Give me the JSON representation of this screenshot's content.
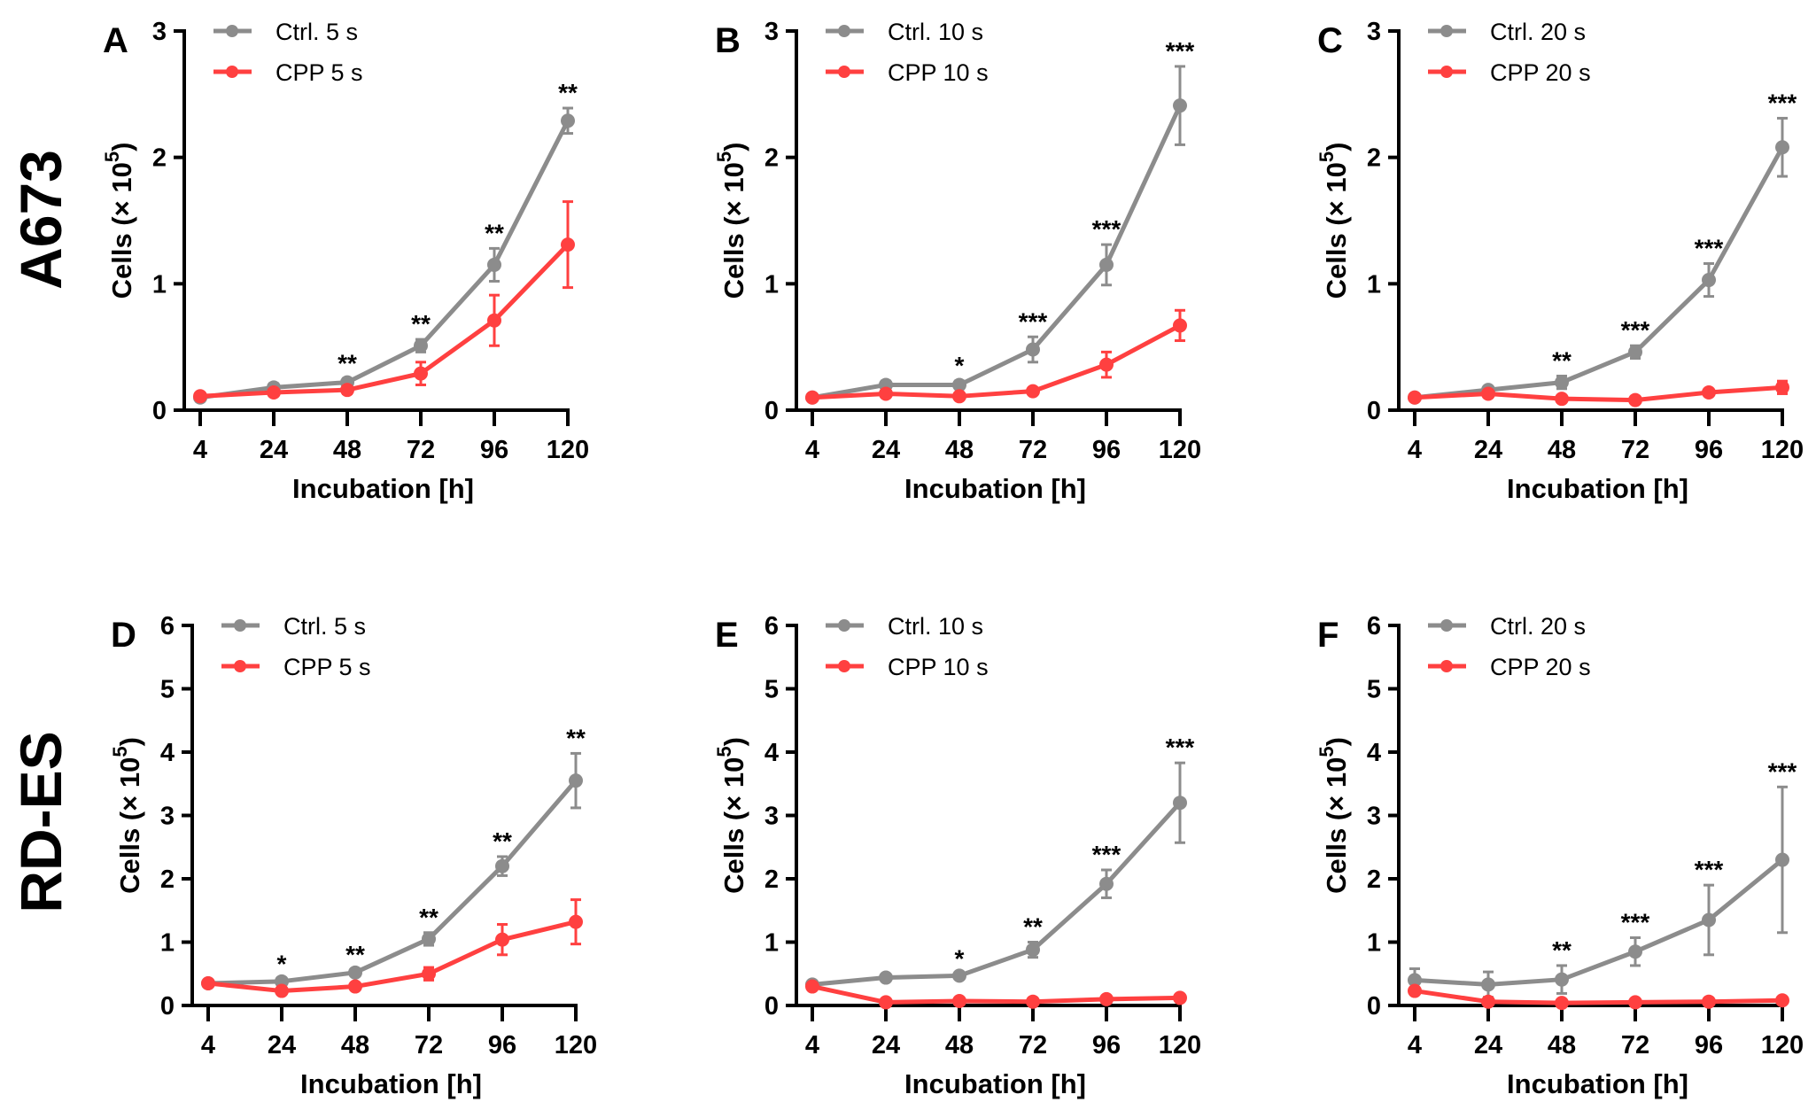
{
  "row_labels": [
    "A673",
    "RD-ES"
  ],
  "colors": {
    "ctrl": "#8c8c8c",
    "cpp": "#ff4040"
  },
  "chart_data": [
    {
      "type": "line",
      "panel": "A",
      "row": 0,
      "col": 0,
      "xlabel": "Incubation [h]",
      "ylabel": "Cells (× 10",
      "ylabel_sup": "5",
      "ylabel_end": ")",
      "categories": [
        "4",
        "24",
        "48",
        "72",
        "96",
        "120"
      ],
      "yticks": [
        "0",
        "1",
        "2",
        "3"
      ],
      "ylim": [
        0,
        3
      ],
      "series": [
        {
          "name": "Ctrl. 5 s",
          "values": [
            0.1,
            0.18,
            0.22,
            0.51,
            1.15,
            2.29
          ],
          "errors": [
            0.03,
            0.03,
            0.03,
            0.05,
            0.13,
            0.1
          ]
        },
        {
          "name": "CPP 5 s",
          "values": [
            0.11,
            0.14,
            0.16,
            0.29,
            0.71,
            1.31
          ],
          "errors": [
            0.02,
            0.02,
            0.03,
            0.09,
            0.2,
            0.34
          ]
        }
      ],
      "significance": [
        "",
        "",
        "**",
        "**",
        "**",
        "**"
      ]
    },
    {
      "type": "line",
      "panel": "B",
      "row": 0,
      "col": 1,
      "xlabel": "Incubation [h]",
      "ylabel": "Cells (× 10",
      "ylabel_sup": "5",
      "ylabel_end": ")",
      "categories": [
        "4",
        "24",
        "48",
        "72",
        "96",
        "120"
      ],
      "yticks": [
        "0",
        "1",
        "2",
        "3"
      ],
      "ylim": [
        0,
        3
      ],
      "series": [
        {
          "name": "Ctrl. 10 s",
          "values": [
            0.1,
            0.2,
            0.2,
            0.48,
            1.15,
            2.41
          ],
          "errors": [
            0.02,
            0.03,
            0.03,
            0.1,
            0.16,
            0.31
          ]
        },
        {
          "name": "CPP 10 s",
          "values": [
            0.1,
            0.13,
            0.11,
            0.15,
            0.36,
            0.67
          ],
          "errors": [
            0.01,
            0.02,
            0.02,
            0.02,
            0.1,
            0.12
          ]
        }
      ],
      "significance": [
        "",
        "",
        "*",
        "***",
        "***",
        "***"
      ]
    },
    {
      "type": "line",
      "panel": "C",
      "row": 0,
      "col": 2,
      "xlabel": "Incubation [h]",
      "ylabel": "Cells (× 10",
      "ylabel_sup": "5",
      "ylabel_end": ")",
      "categories": [
        "4",
        "24",
        "48",
        "72",
        "96",
        "120"
      ],
      "yticks": [
        "0",
        "1",
        "2",
        "3"
      ],
      "ylim": [
        0,
        3
      ],
      "series": [
        {
          "name": "Ctrl. 20 s",
          "values": [
            0.1,
            0.16,
            0.22,
            0.46,
            1.03,
            2.08
          ],
          "errors": [
            0.01,
            0.02,
            0.05,
            0.05,
            0.13,
            0.23
          ]
        },
        {
          "name": "CPP 20 s",
          "values": [
            0.1,
            0.13,
            0.09,
            0.08,
            0.14,
            0.18
          ],
          "errors": [
            0.01,
            0.02,
            0.01,
            0.01,
            0.02,
            0.05
          ]
        }
      ],
      "significance": [
        "",
        "",
        "**",
        "***",
        "***",
        "***"
      ]
    },
    {
      "type": "line",
      "panel": "D",
      "row": 1,
      "col": 0,
      "xlabel": "Incubation [h]",
      "ylabel": "Cells (× 10",
      "ylabel_sup": "5",
      "ylabel_end": ")",
      "categories": [
        "4",
        "24",
        "48",
        "72",
        "96",
        "120"
      ],
      "yticks": [
        "0",
        "1",
        "2",
        "3",
        "4",
        "5",
        "6"
      ],
      "ylim": [
        0,
        6
      ],
      "series": [
        {
          "name": "Ctrl. 5 s",
          "values": [
            0.35,
            0.38,
            0.52,
            1.05,
            2.2,
            3.55
          ],
          "errors": [
            0.03,
            0.03,
            0.04,
            0.1,
            0.15,
            0.43
          ]
        },
        {
          "name": "CPP 5 s",
          "values": [
            0.35,
            0.23,
            0.3,
            0.5,
            1.04,
            1.32
          ],
          "errors": [
            0.03,
            0.03,
            0.03,
            0.1,
            0.24,
            0.35
          ]
        }
      ],
      "significance": [
        "",
        "*",
        "**",
        "**",
        "**",
        "**"
      ]
    },
    {
      "type": "line",
      "panel": "E",
      "row": 1,
      "col": 1,
      "xlabel": "Incubation [h]",
      "ylabel": "Cells (× 10",
      "ylabel_sup": "5",
      "ylabel_end": ")",
      "categories": [
        "4",
        "24",
        "48",
        "72",
        "96",
        "120"
      ],
      "yticks": [
        "0",
        "1",
        "2",
        "3",
        "4",
        "5",
        "6"
      ],
      "ylim": [
        0,
        6
      ],
      "series": [
        {
          "name": "Ctrl. 10 s",
          "values": [
            0.33,
            0.44,
            0.47,
            0.88,
            1.92,
            3.2
          ],
          "errors": [
            0.03,
            0.03,
            0.03,
            0.12,
            0.22,
            0.63
          ]
        },
        {
          "name": "CPP 10 s",
          "values": [
            0.3,
            0.05,
            0.07,
            0.06,
            0.1,
            0.12
          ],
          "errors": [
            0.02,
            0.01,
            0.01,
            0.01,
            0.02,
            0.02
          ]
        }
      ],
      "significance": [
        "",
        "",
        "*",
        "**",
        "***",
        "***"
      ]
    },
    {
      "type": "line",
      "panel": "F",
      "row": 1,
      "col": 2,
      "xlabel": "Incubation [h]",
      "ylabel": "Cells (× 10",
      "ylabel_sup": "5",
      "ylabel_end": ")",
      "categories": [
        "4",
        "24",
        "48",
        "72",
        "96",
        "120"
      ],
      "yticks": [
        "0",
        "1",
        "2",
        "3",
        "4",
        "5",
        "6"
      ],
      "ylim": [
        0,
        6
      ],
      "series": [
        {
          "name": "Ctrl. 20 s",
          "values": [
            0.4,
            0.33,
            0.41,
            0.85,
            1.35,
            2.3
          ],
          "errors": [
            0.18,
            0.2,
            0.22,
            0.22,
            0.55,
            1.15
          ]
        },
        {
          "name": "CPP 20 s",
          "values": [
            0.23,
            0.06,
            0.04,
            0.05,
            0.06,
            0.08
          ],
          "errors": [
            0.02,
            0.01,
            0.01,
            0.01,
            0.01,
            0.02
          ]
        }
      ],
      "significance": [
        "",
        "",
        "**",
        "***",
        "***",
        "***"
      ]
    }
  ]
}
